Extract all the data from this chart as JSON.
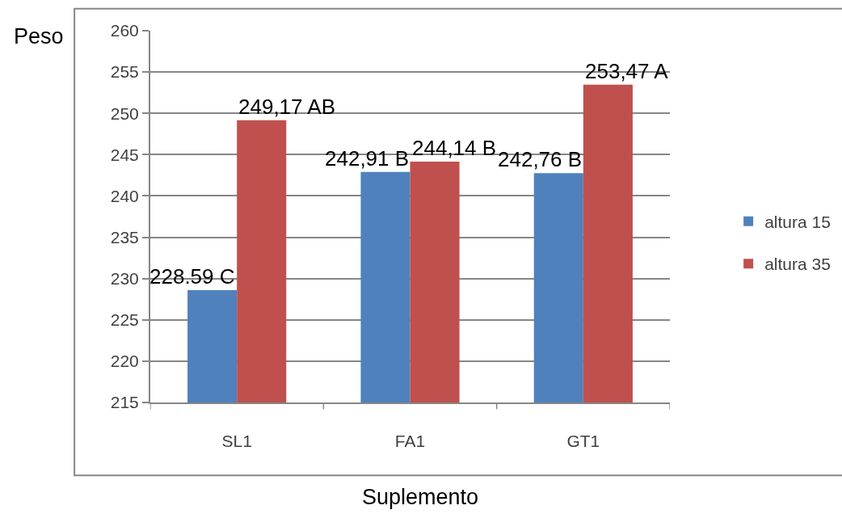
{
  "chart_data": {
    "type": "bar",
    "xlabel": "Suplemento",
    "ylabel": "Peso",
    "categories": [
      "SL1",
      "FA1",
      "GT1"
    ],
    "series": [
      {
        "name": "altura 15",
        "color": "#4f81bd",
        "values": [
          228.59,
          242.91,
          242.76
        ],
        "value_labels": [
          "228.59 C",
          "242,91 B",
          "242,76 B"
        ]
      },
      {
        "name": "altura 35",
        "color": "#c0504d",
        "values": [
          249.17,
          244.14,
          253.47
        ],
        "value_labels": [
          "249,17 AB",
          "244,14 B",
          "253,47 A"
        ]
      }
    ],
    "ylim": [
      215,
      260
    ],
    "yticks": [
      215,
      220,
      225,
      230,
      235,
      240,
      245,
      250,
      255,
      260
    ],
    "grid": "y",
    "legend": "right"
  }
}
